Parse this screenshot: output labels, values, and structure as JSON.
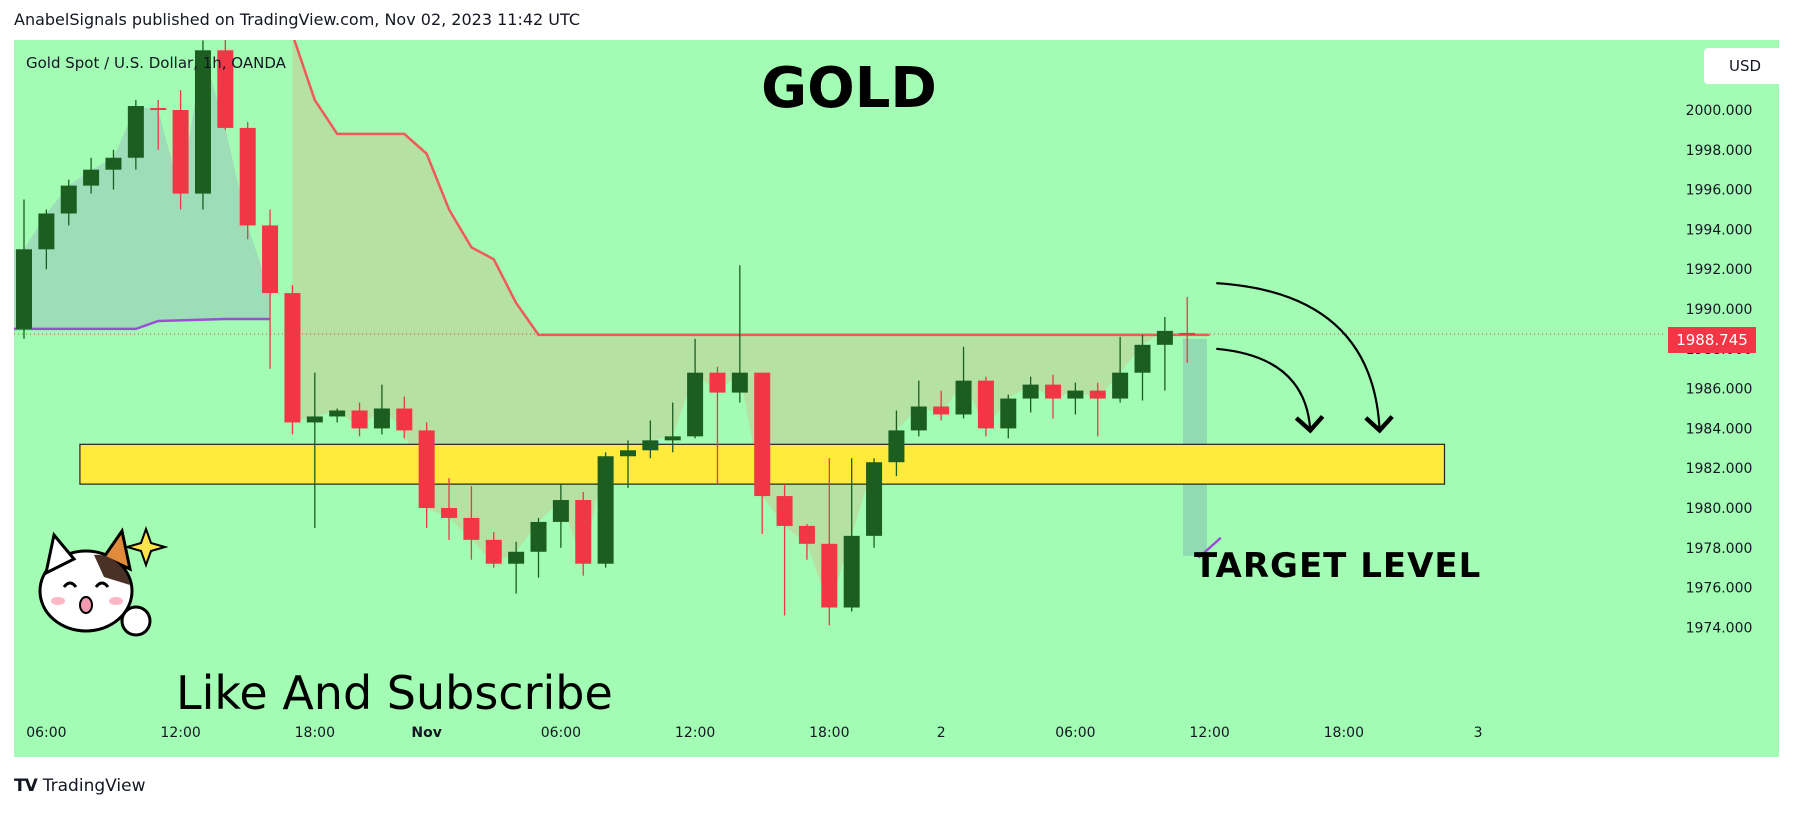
{
  "header": {
    "text": "AnabelSignals published on TradingView.com, Nov 02, 2023 11:42 UTC"
  },
  "chart_info": {
    "symbol_line": "Gold Spot / U.S. Dollar, 1h, OANDA",
    "title": "GOLD",
    "currency": "USD",
    "last_price_label": "1988.745",
    "target_label": "TARGET LEVEL",
    "cta_text": "Like And Subscribe"
  },
  "footer": {
    "brand": "TradingView"
  },
  "colors": {
    "background": "#a2fcb4",
    "bull": "#1b5e20",
    "bear": "#f23645",
    "target_zone": "#ffeb3b",
    "upper_line": "#f25a5a",
    "lower_line": "#9c4fd6"
  },
  "chart_data": {
    "type": "candlestick",
    "y_axis": {
      "min": 1974,
      "max": 2002,
      "ticks": [
        "2000.000",
        "1998.000",
        "1996.000",
        "1994.000",
        "1992.000",
        "1990.000",
        "1988.000",
        "1986.000",
        "1984.000",
        "1982.000",
        "1980.000",
        "1978.000",
        "1976.000",
        "1974.000"
      ]
    },
    "x_axis": {
      "ticks": [
        {
          "label": "06:00",
          "idx": 1
        },
        {
          "label": "12:00",
          "idx": 7
        },
        {
          "label": "18:00",
          "idx": 13
        },
        {
          "label": "Nov",
          "idx": 18
        },
        {
          "label": "06:00",
          "idx": 24
        },
        {
          "label": "12:00",
          "idx": 30
        },
        {
          "label": "18:00",
          "idx": 36
        },
        {
          "label": "2",
          "idx": 41
        },
        {
          "label": "06:00",
          "idx": 47
        },
        {
          "label": "12:00",
          "idx": 53
        },
        {
          "label": "18:00",
          "idx": 59
        },
        {
          "label": "3",
          "idx": 65
        }
      ]
    },
    "candles": [
      [
        1989.0,
        1995.5,
        1988.5,
        1993.0
      ],
      [
        1993.0,
        1995.0,
        1992.0,
        1994.8
      ],
      [
        1994.8,
        1996.5,
        1994.2,
        1996.2
      ],
      [
        1996.2,
        1997.6,
        1995.8,
        1997.0
      ],
      [
        1997.0,
        1998.0,
        1996.0,
        1997.6
      ],
      [
        1997.6,
        2000.5,
        1997.0,
        2000.2
      ],
      [
        2000.1,
        2000.5,
        1998.0,
        2000.0
      ],
      [
        2000.0,
        2001.0,
        1995.0,
        1995.8
      ],
      [
        1995.8,
        2003.5,
        1995.0,
        2003.0
      ],
      [
        2003.0,
        2004.0,
        1999.0,
        1999.1
      ],
      [
        1999.1,
        1999.4,
        1993.5,
        1994.2
      ],
      [
        1994.2,
        1995.0,
        1987.0,
        1990.8
      ],
      [
        1990.8,
        1991.2,
        1983.7,
        1984.3
      ],
      [
        1984.3,
        1986.8,
        1979.0,
        1984.6
      ],
      [
        1984.6,
        1985.0,
        1984.3,
        1984.9
      ],
      [
        1984.9,
        1985.3,
        1983.6,
        1984.0
      ],
      [
        1984.0,
        1986.2,
        1983.7,
        1985.0
      ],
      [
        1985.0,
        1985.6,
        1983.5,
        1983.9
      ],
      [
        1983.9,
        1984.3,
        1979.0,
        1980.0
      ],
      [
        1980.0,
        1981.5,
        1978.4,
        1979.5
      ],
      [
        1979.5,
        1981.1,
        1977.4,
        1978.4
      ],
      [
        1978.4,
        1978.8,
        1977.0,
        1977.2
      ],
      [
        1977.2,
        1978.3,
        1975.7,
        1977.8
      ],
      [
        1977.8,
        1979.5,
        1976.5,
        1979.3
      ],
      [
        1979.3,
        1981.2,
        1978.0,
        1980.4
      ],
      [
        1980.4,
        1980.8,
        1976.6,
        1977.2
      ],
      [
        1977.2,
        1982.8,
        1977.0,
        1982.6
      ],
      [
        1982.6,
        1983.4,
        1981.0,
        1982.9
      ],
      [
        1982.9,
        1984.4,
        1982.5,
        1983.4
      ],
      [
        1983.4,
        1985.3,
        1982.8,
        1983.6
      ],
      [
        1983.6,
        1988.5,
        1983.5,
        1986.8
      ],
      [
        1986.8,
        1987.1,
        1981.2,
        1985.8
      ],
      [
        1985.8,
        1992.2,
        1985.3,
        1986.8
      ],
      [
        1986.8,
        1986.8,
        1978.7,
        1980.6
      ],
      [
        1980.6,
        1981.2,
        1974.6,
        1979.1
      ],
      [
        1979.1,
        1979.2,
        1977.4,
        1978.2
      ],
      [
        1978.2,
        1982.5,
        1974.1,
        1975.0
      ],
      [
        1975.0,
        1982.5,
        1974.8,
        1978.6
      ],
      [
        1978.6,
        1982.5,
        1978.0,
        1982.3
      ],
      [
        1982.3,
        1984.9,
        1981.6,
        1983.9
      ],
      [
        1983.9,
        1986.4,
        1983.6,
        1985.1
      ],
      [
        1985.1,
        1985.9,
        1984.4,
        1984.7
      ],
      [
        1984.7,
        1988.1,
        1984.5,
        1986.4
      ],
      [
        1986.4,
        1986.6,
        1983.6,
        1984.0
      ],
      [
        1984.0,
        1985.7,
        1983.5,
        1985.5
      ],
      [
        1985.5,
        1986.6,
        1984.8,
        1986.2
      ],
      [
        1986.2,
        1986.7,
        1984.5,
        1985.5
      ],
      [
        1985.5,
        1986.3,
        1984.7,
        1985.9
      ],
      [
        1985.9,
        1986.3,
        1983.6,
        1985.5
      ],
      [
        1985.5,
        1988.6,
        1985.3,
        1986.8
      ],
      [
        1986.8,
        1988.7,
        1985.4,
        1988.2
      ],
      [
        1988.2,
        1989.6,
        1985.9,
        1988.9
      ],
      [
        1988.8,
        1990.6,
        1987.3,
        1988.7
      ]
    ],
    "upper_line": {
      "start_idx": 12,
      "values": [
        2003.8,
        2000.5,
        1998.8,
        1998.8,
        1998.8,
        1998.8,
        1997.8,
        1995.0,
        1993.1,
        1992.5,
        1990.3,
        1988.7,
        1988.7,
        1988.7,
        1988.7,
        1988.7,
        1988.7,
        1988.7,
        1988.7,
        1988.7,
        1988.7,
        1988.7,
        1988.7,
        1988.7,
        1988.7,
        1988.7,
        1988.7,
        1988.7,
        1988.7,
        1988.7,
        1988.7,
        1988.7,
        1988.7,
        1988.7,
        1988.7,
        1988.7,
        1988.7,
        1988.7,
        1988.7,
        1988.7,
        1988.7,
        1988.7
      ]
    },
    "lower_line": {
      "points": [
        [
          -0.5,
          1989.0
        ],
        [
          5,
          1989.0
        ],
        [
          6,
          1989.4
        ],
        [
          9,
          1989.5
        ],
        [
          11,
          1989.5
        ]
      ],
      "tail": [
        [
          52.5,
          1977.5
        ],
        [
          53.5,
          1978.5
        ]
      ]
    },
    "last_price": 1988.745,
    "target_zone": {
      "from": 1981.2,
      "to": 1983.2,
      "start_idx": 2.5,
      "end_idx": 63.5
    }
  }
}
